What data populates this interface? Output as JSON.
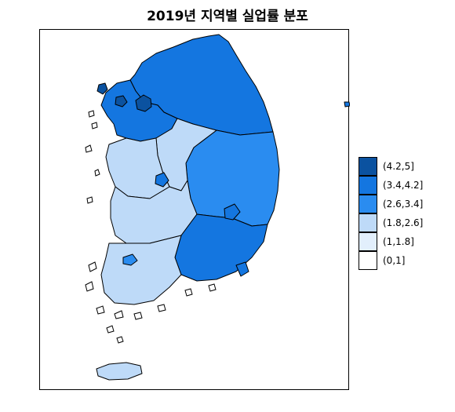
{
  "title": "2019년 지역별 실업률 분포",
  "colors": {
    "c1": "#0B52A0",
    "c2": "#1476E0",
    "c3": "#2A8CF0",
    "c4": "#BEDAF8",
    "c5": "#E2EFFC",
    "c6": "#FFFFFF",
    "region_stroke": "#000000"
  },
  "legend": [
    {
      "label": "(4.2,5]",
      "color": "#0B52A0"
    },
    {
      "label": "(3.4,4.2]",
      "color": "#1476E0"
    },
    {
      "label": "(2.6,3.4]",
      "color": "#2A8CF0"
    },
    {
      "label": "(1.8,2.6]",
      "color": "#BEDAF8"
    },
    {
      "label": "(1,1.8]",
      "color": "#E2EFFC"
    },
    {
      "label": "(0,1]",
      "color": "#FFFFFF"
    }
  ]
}
